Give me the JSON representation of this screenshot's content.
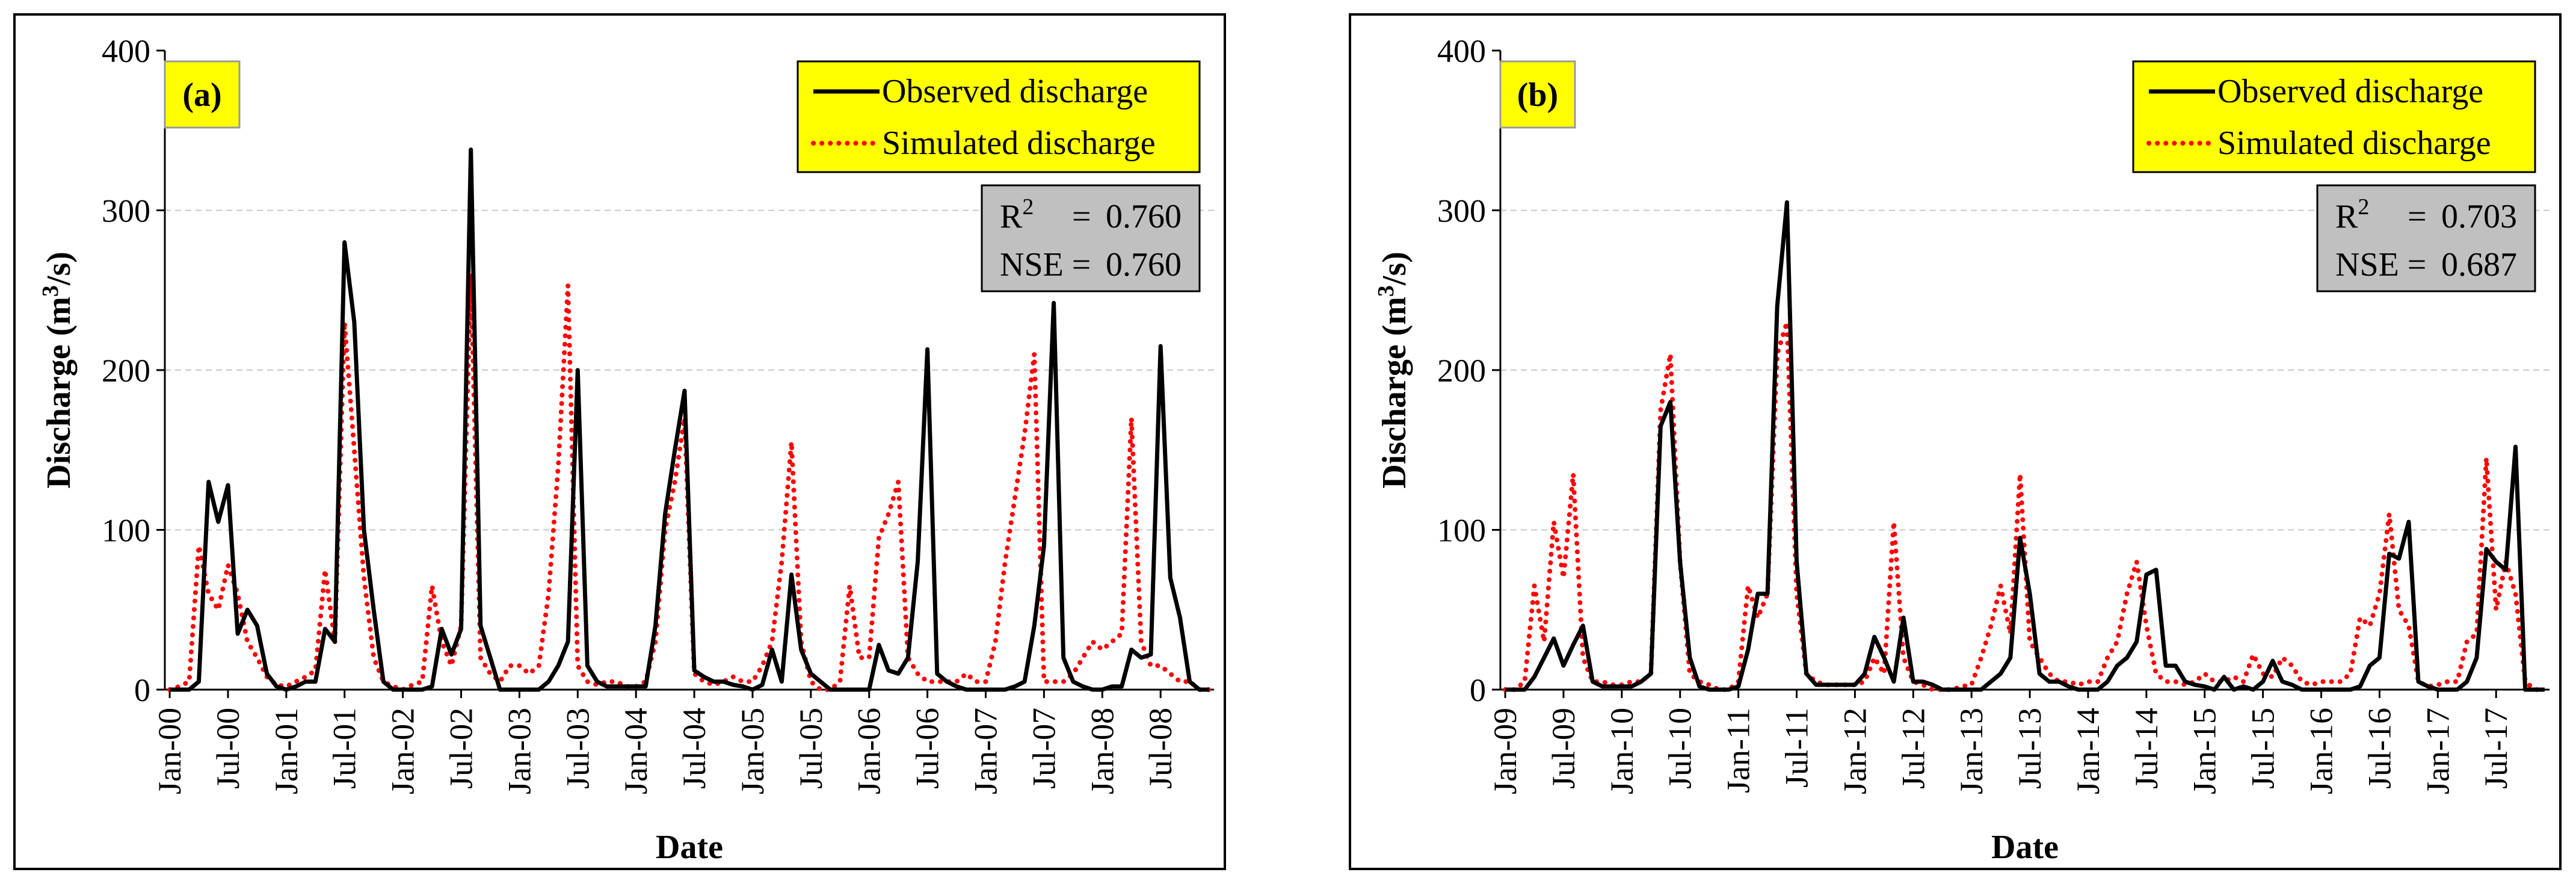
{
  "chart_data": [
    {
      "type": "line",
      "panel_label": "(a)",
      "title": "",
      "xlabel": "Date",
      "ylabel": "Discharge (m³/s)",
      "ylabel_parts": {
        "pre": "Discharge (m",
        "sup": "3",
        "post": "/s)"
      },
      "ylim": [
        0,
        400
      ],
      "yticks": [
        "0",
        "100",
        "200",
        "300",
        "400"
      ],
      "x_start": "Jan-00",
      "n_months": 108,
      "xticks": [
        "Jan-00",
        "Jul-00",
        "Jan-01",
        "Jul-01",
        "Jan-02",
        "Jul-02",
        "Jan-03",
        "Jul-03",
        "Jan-04",
        "Jul-04",
        "Jan-05",
        "Jul-05",
        "Jan-06",
        "Jul-06",
        "Jan-07",
        "Jul-07",
        "Jan-08",
        "Jul-08"
      ],
      "grid": "horizontal dashed",
      "legend_position": "top-right",
      "series": [
        {
          "name": "Observed discharge",
          "style": "solid",
          "color": "#000000",
          "values": [
            0,
            0,
            0,
            5,
            130,
            105,
            128,
            35,
            50,
            40,
            10,
            2,
            0,
            2,
            5,
            5,
            38,
            30,
            280,
            230,
            100,
            50,
            5,
            0,
            0,
            0,
            0,
            2,
            38,
            22,
            38,
            338,
            40,
            20,
            0,
            0,
            0,
            0,
            0,
            5,
            15,
            30,
            200,
            15,
            5,
            2,
            2,
            2,
            2,
            2,
            40,
            110,
            150,
            187,
            12,
            8,
            5,
            5,
            3,
            2,
            0,
            3,
            25,
            5,
            72,
            25,
            10,
            5,
            0,
            0,
            0,
            0,
            0,
            28,
            12,
            10,
            20,
            80,
            213,
            10,
            5,
            2,
            0,
            0,
            0,
            0,
            0,
            2,
            5,
            40,
            90,
            242,
            20,
            5,
            2,
            0,
            0,
            2,
            2,
            25,
            20,
            22,
            215,
            70,
            45,
            5,
            0,
            0
          ]
        },
        {
          "name": "Simulated discharge",
          "style": "dotted",
          "color": "#ff0000",
          "values": [
            0,
            2,
            5,
            90,
            60,
            50,
            78,
            60,
            30,
            20,
            8,
            3,
            2,
            5,
            8,
            12,
            75,
            30,
            230,
            150,
            70,
            20,
            5,
            2,
            0,
            3,
            5,
            65,
            30,
            15,
            40,
            260,
            20,
            10,
            5,
            15,
            15,
            10,
            15,
            60,
            140,
            253,
            15,
            5,
            3,
            5,
            5,
            2,
            2,
            5,
            30,
            100,
            130,
            170,
            10,
            5,
            3,
            5,
            8,
            5,
            5,
            15,
            30,
            80,
            155,
            30,
            5,
            0,
            0,
            5,
            65,
            20,
            20,
            95,
            110,
            130,
            20,
            10,
            5,
            5,
            5,
            5,
            10,
            5,
            5,
            30,
            80,
            120,
            160,
            210,
            5,
            5,
            5,
            10,
            20,
            30,
            25,
            30,
            35,
            170,
            30,
            15,
            15,
            10,
            5,
            5,
            0,
            0
          ]
        }
      ],
      "stats": {
        "r2_label": "R",
        "r2_sup": "2",
        "r2_eq": "=",
        "r2_value": "0.760",
        "nse_label": "NSE =",
        "nse_value": "0.760"
      }
    },
    {
      "type": "line",
      "panel_label": "(b)",
      "title": "",
      "xlabel": "Date",
      "ylabel": "Discharge (m³/s)",
      "ylabel_parts": {
        "pre": "Discharge (m",
        "sup": "3",
        "post": "/s)"
      },
      "ylim": [
        0,
        400
      ],
      "yticks": [
        "0",
        "100",
        "200",
        "300",
        "400"
      ],
      "x_start": "Jan-09",
      "n_months": 108,
      "xticks": [
        "Jan-09",
        "Jul-09",
        "Jan-10",
        "Jul-10",
        "Jan-11",
        "Jul-11",
        "Jan-12",
        "Jul-12",
        "Jan-13",
        "Jul-13",
        "Jan-14",
        "Jul-14",
        "Jan-15",
        "Jul-15",
        "Jan-16",
        "Jul-16",
        "Jan-17",
        "Jul-17"
      ],
      "grid": "horizontal dashed",
      "legend_position": "top-right",
      "series": [
        {
          "name": "Observed discharge",
          "style": "solid",
          "color": "#000000",
          "values": [
            0,
            0,
            0,
            8,
            20,
            32,
            15,
            28,
            40,
            5,
            2,
            2,
            2,
            2,
            5,
            10,
            165,
            180,
            80,
            20,
            2,
            0,
            0,
            0,
            2,
            25,
            60,
            60,
            240,
            305,
            80,
            10,
            3,
            3,
            3,
            3,
            3,
            10,
            33,
            20,
            5,
            45,
            5,
            5,
            3,
            0,
            0,
            0,
            0,
            0,
            5,
            10,
            20,
            95,
            60,
            10,
            5,
            5,
            2,
            0,
            0,
            0,
            5,
            15,
            20,
            30,
            72,
            75,
            15,
            15,
            5,
            3,
            2,
            0,
            8,
            0,
            2,
            0,
            5,
            18,
            5,
            3,
            0,
            0,
            0,
            0,
            0,
            0,
            2,
            15,
            20,
            85,
            82,
            105,
            5,
            2,
            0,
            0,
            0,
            5,
            20,
            88,
            80,
            75,
            152,
            0,
            0,
            0
          ]
        },
        {
          "name": "Simulated discharge",
          "style": "dotted",
          "color": "#ff0000",
          "values": [
            0,
            0,
            5,
            65,
            30,
            105,
            70,
            135,
            20,
            5,
            5,
            3,
            3,
            5,
            5,
            10,
            175,
            210,
            80,
            10,
            5,
            3,
            0,
            0,
            5,
            65,
            45,
            60,
            210,
            230,
            60,
            10,
            5,
            3,
            3,
            3,
            3,
            5,
            20,
            10,
            105,
            20,
            5,
            3,
            0,
            0,
            0,
            2,
            3,
            20,
            40,
            65,
            35,
            135,
            30,
            20,
            10,
            5,
            5,
            3,
            5,
            5,
            20,
            30,
            60,
            80,
            40,
            10,
            5,
            5,
            3,
            5,
            10,
            5,
            5,
            8,
            5,
            22,
            10,
            8,
            20,
            15,
            5,
            3,
            5,
            5,
            5,
            10,
            45,
            40,
            60,
            110,
            50,
            40,
            5,
            2,
            3,
            5,
            5,
            30,
            35,
            145,
            50,
            80,
            60,
            5,
            0,
            0
          ]
        }
      ],
      "stats": {
        "r2_label": "R",
        "r2_sup": "2",
        "r2_eq": "=",
        "r2_value": "0.703",
        "nse_label": "NSE =",
        "nse_value": "0.687"
      }
    }
  ]
}
